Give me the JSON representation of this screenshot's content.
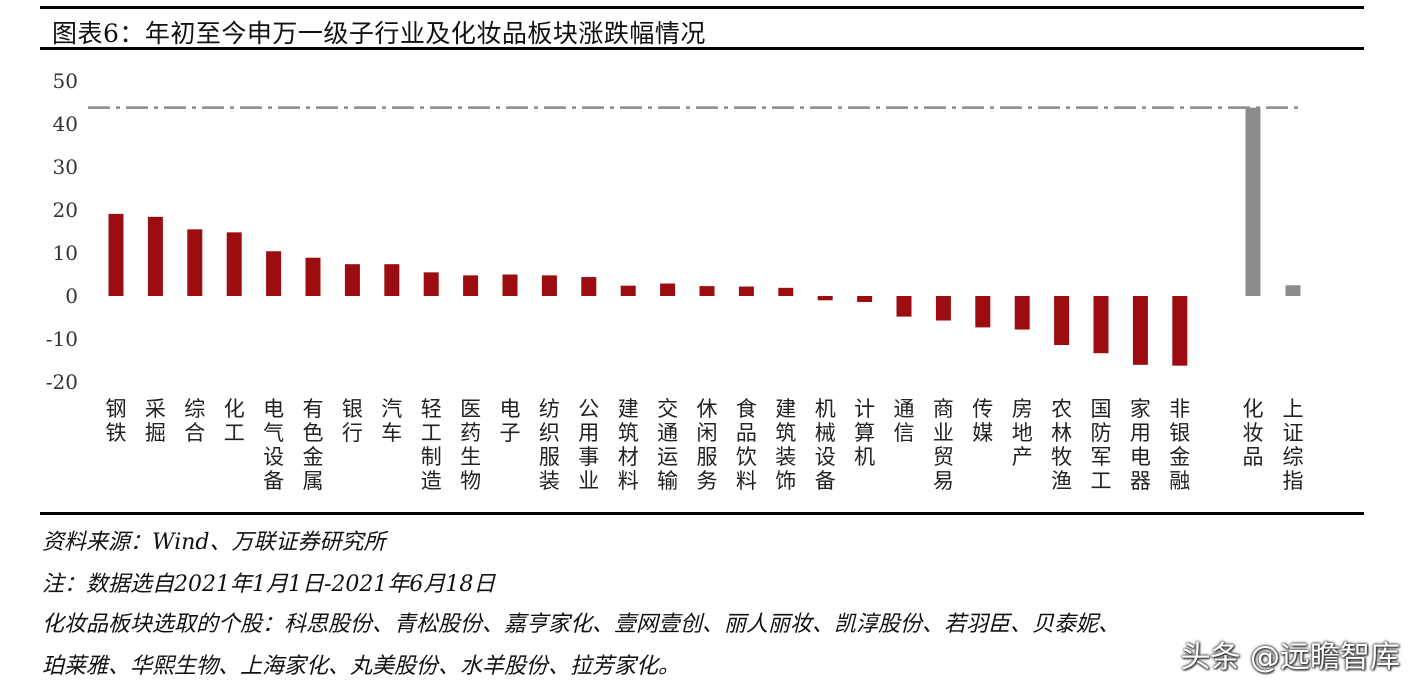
{
  "title": "图表6：年初至今申万一级子行业及化妆品板块涨跌幅情况",
  "chart_data": {
    "type": "bar",
    "categories": [
      "钢铁",
      "采掘",
      "综合",
      "化工",
      "电气设备",
      "有色金属",
      "银行",
      "汽车",
      "轻工制造",
      "医药生物",
      "电子",
      "纺织服装",
      "公用事业",
      "建筑材料",
      "交通运输",
      "休闲服务",
      "食品饮料",
      "建筑装饰",
      "机械设备",
      "计算机",
      "通信",
      "商业贸易",
      "传媒",
      "房地产",
      "农林牧渔",
      "国防军工",
      "家用电器",
      "非银金融",
      "化妆品",
      "上证综指"
    ],
    "values": [
      19.1,
      18.4,
      15.5,
      14.8,
      10.4,
      8.9,
      7.4,
      7.4,
      5.5,
      4.8,
      5.0,
      4.8,
      4.4,
      2.4,
      2.9,
      2.3,
      2.2,
      1.9,
      -1.0,
      -1.4,
      -4.8,
      -5.7,
      -7.3,
      -7.8,
      -11.4,
      -13.3,
      -16.0,
      -16.2,
      43.8,
      2.5
    ],
    "colors": {
      "industry": "#9b0d10",
      "cosmetics": "#8c8c8c",
      "index": "#8c8c8c",
      "reference_line": "#8a8a8a"
    },
    "reference_line_value": 43.8,
    "yticks": [
      50,
      40,
      30,
      20,
      10,
      0,
      -10,
      -20
    ],
    "ylim": [
      -20,
      50
    ],
    "grid": false,
    "xlabel": "",
    "ylabel": ""
  },
  "notes": {
    "source": "资料来源：Wind、万联证券研究所",
    "date_range": "注：数据选自2021年1月1日-2021年6月18日",
    "stocks_line1": "化妆品板块选取的个股：科思股份、青松股份、嘉亨家化、壹网壹创、丽人丽妆、凯淳股份、若羽臣、贝泰妮、",
    "stocks_line2": "珀莱雅、华熙生物、上海家化、丸美股份、水羊股份、拉芳家化。"
  },
  "watermark": "头条 @远瞻智库"
}
